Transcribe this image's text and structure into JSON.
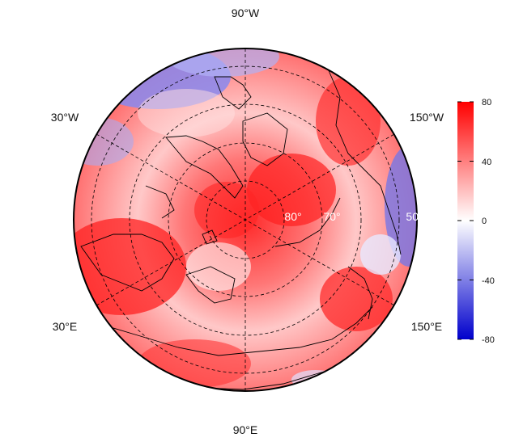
{
  "map": {
    "projection": "north-polar-stereographic",
    "longitude_labels": [
      "90°W",
      "30°W",
      "150°W",
      "30°E",
      "150°E",
      "90°E"
    ],
    "latitude_labels": [
      "80°",
      "70°",
      "50°"
    ]
  },
  "colorbar": {
    "ticks": [
      "80",
      "40",
      "0",
      "-40",
      "-80"
    ],
    "min": -80,
    "max": 80,
    "colors": {
      "low": "#0000cc",
      "mid": "#ffffff",
      "high": "#ff0000"
    }
  }
}
